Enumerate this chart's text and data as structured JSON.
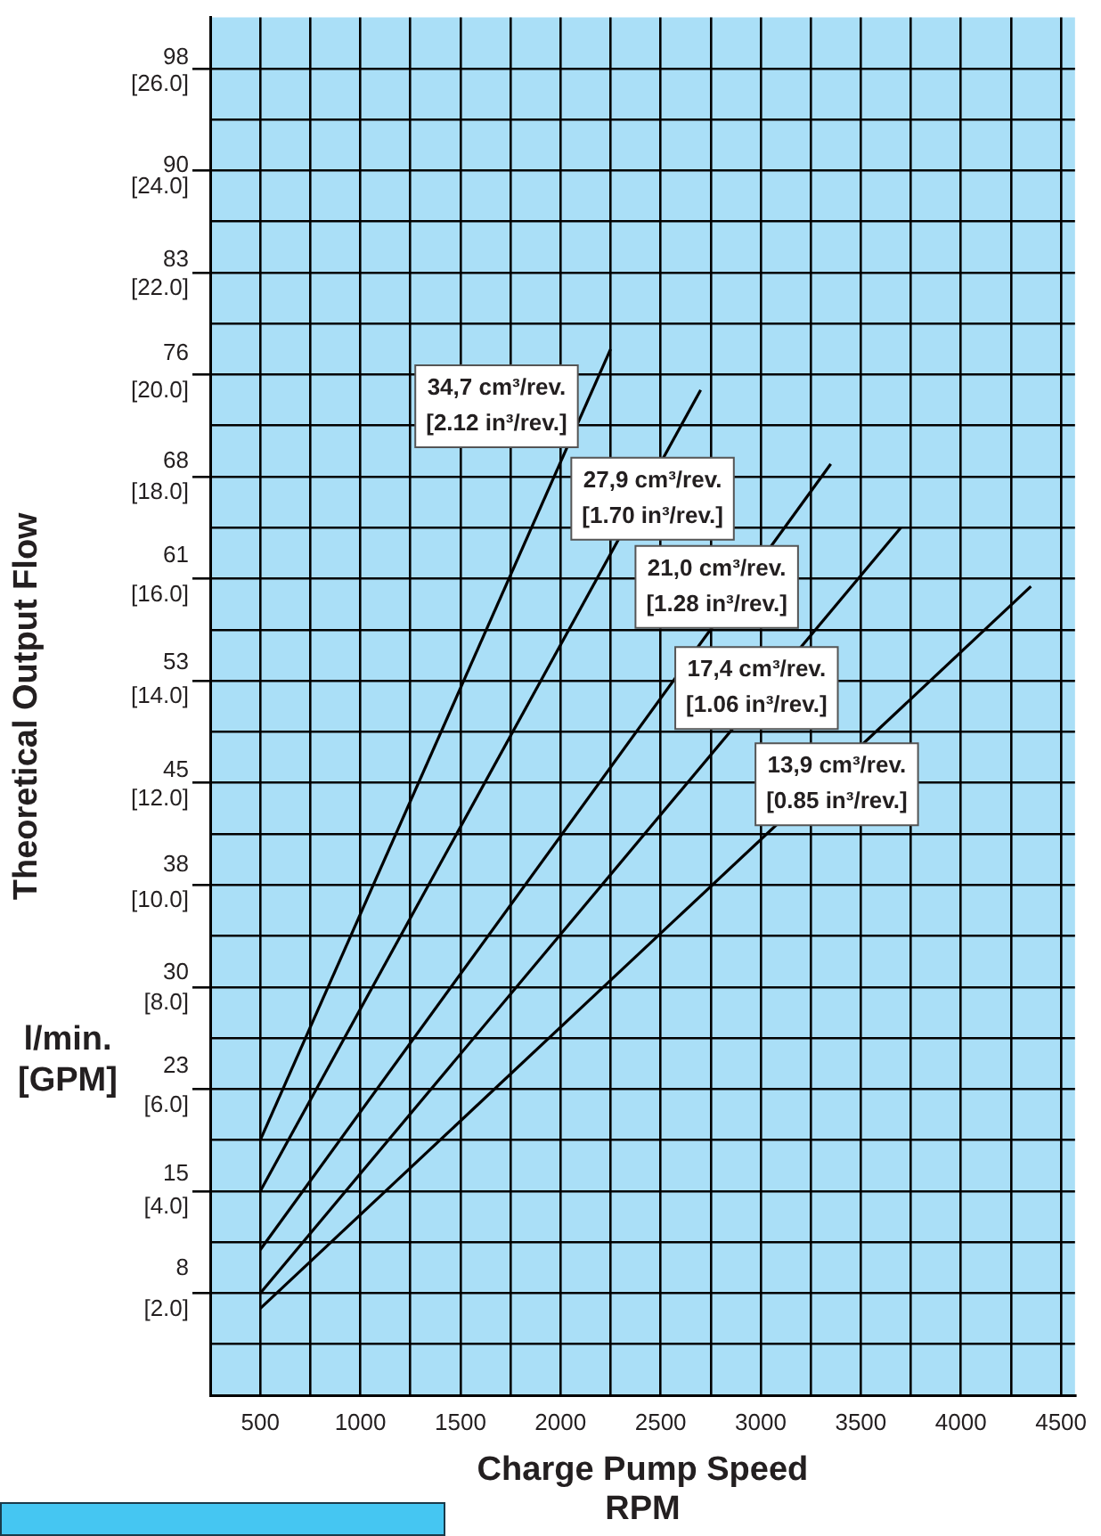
{
  "chart_data": {
    "type": "line",
    "ylabel": "Theoretical Output Flow",
    "xlabel": "Charge Pump Speed\nRPM",
    "xlim": [
      250,
      4570
    ],
    "ylim": [
      0,
      27
    ],
    "xticks": [
      500,
      {
        "value": 750,
        "label": null
      },
      1000,
      {
        "value": 1250,
        "label": null
      },
      1500,
      {
        "value": 1750,
        "label": null
      },
      2000,
      {
        "value": 2250,
        "label": null
      },
      2500,
      {
        "value": 2750,
        "label": null
      },
      3000,
      {
        "value": 3250,
        "label": null
      },
      3500,
      {
        "value": 3750,
        "label": null
      },
      4000,
      {
        "value": 4250,
        "label": null
      },
      4500
    ],
    "yticks": [
      {
        "value": 1,
        "label": null
      },
      {
        "value": 2,
        "label": "[2.0]"
      },
      {
        "value": 3,
        "label": null
      },
      {
        "value": 4,
        "label": "[4.0]"
      },
      {
        "value": 5,
        "label": null
      },
      {
        "value": 6,
        "label": "[6.0]"
      },
      {
        "value": 7,
        "label": null
      },
      {
        "value": 8,
        "label": "[8.0]"
      },
      {
        "value": 9,
        "label": null
      },
      {
        "value": 10,
        "label": "[10.0]"
      },
      {
        "value": 11,
        "label": null
      },
      {
        "value": 12,
        "label": "[12.0]"
      },
      {
        "value": 13,
        "label": null
      },
      {
        "value": 14,
        "label": "[14.0]"
      },
      {
        "value": 15,
        "label": null
      },
      {
        "value": 16,
        "label": "[16.0]"
      },
      {
        "value": 17,
        "label": null
      },
      {
        "value": 18,
        "label": "[18.0]"
      },
      {
        "value": 19,
        "label": null
      },
      {
        "value": 20,
        "label": "[20.0]"
      },
      {
        "value": 21,
        "label": null
      },
      {
        "value": 22,
        "label": "[22.0]"
      },
      {
        "value": 23,
        "label": null
      },
      {
        "value": 24,
        "label": "[24.0]"
      },
      {
        "value": 25,
        "label": null
      },
      {
        "value": 26,
        "label": "[26.0]"
      }
    ],
    "y2lim": [
      -1.42,
      101
    ],
    "y2ticks": [
      8,
      15,
      23,
      30,
      38,
      45,
      53,
      61,
      68,
      76,
      83,
      90,
      98
    ],
    "grid": true,
    "legend": false,
    "marker": "none",
    "line_style": "solid",
    "series": [
      {
        "name": "34,7 cm³/rev.\n[2.12 in³/rev.]",
        "color": "#000000",
        "x": [
          500,
          2250
        ],
        "values": [
          5.0,
          20.5
        ]
      },
      {
        "name": "27,9 cm³/rev.\n[1.70 in³/rev.]",
        "color": "#000000",
        "x": [
          500,
          2700
        ],
        "values": [
          4.0,
          19.7
        ]
      },
      {
        "name": "21,0 cm³/rev.\n[1.28 in³/rev.]",
        "color": "#000000",
        "x": [
          500,
          3350
        ],
        "values": [
          2.85,
          18.25
        ]
      },
      {
        "name": "17,4 cm³/rev.\n[1.06 in³/rev.]",
        "color": "#000000",
        "x": [
          500,
          3700
        ],
        "values": [
          2.0,
          17.0
        ]
      },
      {
        "name": "13,9 cm³/rev.\n[0.85 in³/rev.]",
        "color": "#000000",
        "x": [
          500,
          4350
        ],
        "values": [
          1.7,
          15.85
        ]
      }
    ],
    "annotations": [
      "l/min.\n[GPM]"
    ]
  }
}
